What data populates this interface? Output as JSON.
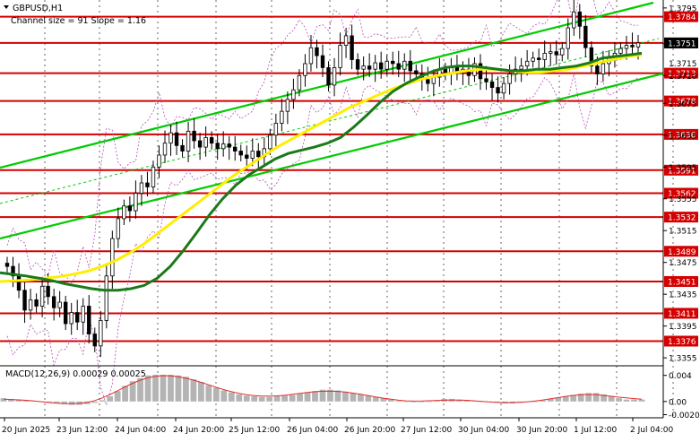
{
  "header": {
    "symbol": "GBPUSD,H1",
    "channel": "Channel size = 91 Slope = 1.16"
  },
  "macd": {
    "label": "MACD(12,26,9) 0.00029 0.00025",
    "axis_ticks": [
      "0.004",
      "0.00",
      "-0.00202"
    ],
    "ylim": [
      -0.0025,
      0.0052
    ]
  },
  "price_axis": {
    "ticks": [
      "1.3795",
      "1.3750",
      "1.3710",
      "1.3675",
      "1.3635",
      "1.3595",
      "1.3555",
      "1.3515",
      "1.3475",
      "1.3435",
      "1.3395",
      "1.3355"
    ],
    "current": "1.3751",
    "current_alt": "1.3715"
  },
  "colors": {
    "level": "#d40000",
    "channel": "#00cc00",
    "ma_fast": "#1a7a1a",
    "ma_slow": "#ffee00",
    "bollinger": "#b44fb4",
    "candle": "#000000",
    "histogram": "#b4b4b4",
    "signal": "#e03030"
  },
  "chart_data": {
    "type": "candlestick",
    "ylim": [
      1.3345,
      1.3805
    ],
    "levels": [
      1.3784,
      1.3751,
      1.3713,
      1.3678,
      1.3636,
      1.3591,
      1.3562,
      1.3532,
      1.3489,
      1.3451,
      1.3411,
      1.3376
    ],
    "level_labels": [
      "1.3784",
      "1.3751",
      "1.3713",
      "1.3678",
      "1.3636",
      "1.3591",
      "1.3562",
      "1.3532",
      "1.3489",
      "1.3451",
      "1.3411",
      "1.3376"
    ],
    "x_labels": [
      "20 Jun 2025",
      "23 Jun 12:00",
      "24 Jun 04:00",
      "24 Jun 20:00",
      "25 Jun 12:00",
      "26 Jun 04:00",
      "26 Jun 20:00",
      "27 Jun 12:00",
      "30 Jun 04:00",
      "30 Jun 20:00",
      "1 Jul 12:00",
      "2 Jul 04:00"
    ],
    "closes": [
      1.347,
      1.3458,
      1.344,
      1.3415,
      1.3428,
      1.342,
      1.3445,
      1.3432,
      1.3418,
      1.3425,
      1.3398,
      1.3412,
      1.34,
      1.342,
      1.3385,
      1.337,
      1.3402,
      1.3458,
      1.3505,
      1.353,
      1.3546,
      1.354,
      1.3562,
      1.3575,
      1.357,
      1.3595,
      1.361,
      1.3625,
      1.3638,
      1.3622,
      1.3615,
      1.364,
      1.3628,
      1.362,
      1.3632,
      1.3625,
      1.3618,
      1.3624,
      1.362,
      1.3615,
      1.361,
      1.3606,
      1.3615,
      1.3608,
      1.3618,
      1.3635,
      1.365,
      1.3665,
      1.368,
      1.3692,
      1.371,
      1.3725,
      1.3745,
      1.3735,
      1.372,
      1.3698,
      1.372,
      1.3748,
      1.376,
      1.373,
      1.3718,
      1.3722,
      1.3718,
      1.3726,
      1.3718,
      1.3728,
      1.3725,
      1.3718,
      1.3728,
      1.3716,
      1.3712,
      1.3705,
      1.37,
      1.3708,
      1.3718,
      1.3712,
      1.372,
      1.3714,
      1.3718,
      1.371,
      1.3725,
      1.3706,
      1.3702,
      1.3695,
      1.3688,
      1.37,
      1.3712,
      1.3718,
      1.3722,
      1.3728,
      1.3732,
      1.373,
      1.3738,
      1.374,
      1.3736,
      1.3744,
      1.377,
      1.379,
      1.3772,
      1.3745,
      1.3722,
      1.3712,
      1.3725,
      1.3732,
      1.3738,
      1.3744,
      1.3748,
      1.3746,
      1.3751
    ],
    "ma_fast": [
      1.3462,
      1.346,
      1.3458,
      1.3455,
      1.3452,
      1.3448,
      1.3445,
      1.3442,
      1.344,
      1.344,
      1.3442,
      1.3446,
      1.3455,
      1.347,
      1.349,
      1.3512,
      1.3535,
      1.3555,
      1.3572,
      1.3585,
      1.3595,
      1.3605,
      1.3612,
      1.3616,
      1.362,
      1.3625,
      1.3632,
      1.3645,
      1.366,
      1.3676,
      1.369,
      1.37,
      1.3708,
      1.3715,
      1.372,
      1.3722,
      1.3722,
      1.372,
      1.3718,
      1.3716,
      1.3716,
      1.3718,
      1.3718,
      1.372,
      1.3722,
      1.3726,
      1.3732,
      1.3734,
      1.3736,
      1.3738
    ],
    "ma_slow": [
      1.3451,
      1.3452,
      1.3453,
      1.3455,
      1.3457,
      1.346,
      1.3464,
      1.347,
      1.3478,
      1.3488,
      1.35,
      1.3514,
      1.3528,
      1.3542,
      1.3556,
      1.357,
      1.3584,
      1.3596,
      1.3608,
      1.362,
      1.363,
      1.364,
      1.365,
      1.366,
      1.367,
      1.3678,
      1.3686,
      1.3694,
      1.37,
      1.3706,
      1.371,
      1.3713,
      1.3716,
      1.3718,
      1.3718,
      1.3716,
      1.3714,
      1.3714,
      1.3716,
      1.3718,
      1.3722,
      1.3726,
      1.373,
      1.3734,
      1.3736
    ],
    "macd_hist": [
      0.0005,
      0.0004,
      0.0003,
      0.0002,
      0.0001,
      0.0,
      -0.0002,
      -0.0003,
      -0.0004,
      -0.0005,
      -0.0005,
      -0.0004,
      -0.0002,
      0.0002,
      0.0008,
      0.0016,
      0.0024,
      0.0031,
      0.0036,
      0.004,
      0.0041,
      0.0041,
      0.0041,
      0.004,
      0.0038,
      0.0034,
      0.003,
      0.0025,
      0.0021,
      0.0017,
      0.0014,
      0.0011,
      0.0009,
      0.0008,
      0.0007,
      0.0007,
      0.0008,
      0.0009,
      0.001,
      0.0012,
      0.0014,
      0.0016,
      0.0018,
      0.0018,
      0.0017,
      0.0015,
      0.0013,
      0.0011,
      0.0009,
      0.0007,
      0.0005,
      0.0003,
      0.0001,
      0.0,
      -0.0001,
      -0.0001,
      0.0,
      0.0002,
      0.0004,
      0.0004,
      0.0003,
      0.0002,
      0.0001,
      0.0,
      -0.0001,
      -0.0002,
      -0.0003,
      -0.0003,
      -0.0002,
      -0.0001,
      0.0,
      0.0002,
      0.0004,
      0.0006,
      0.0008,
      0.001,
      0.0012,
      0.0013,
      0.0013,
      0.0011,
      0.0008,
      0.0005,
      0.0003,
      0.0003,
      0.0003
    ]
  }
}
